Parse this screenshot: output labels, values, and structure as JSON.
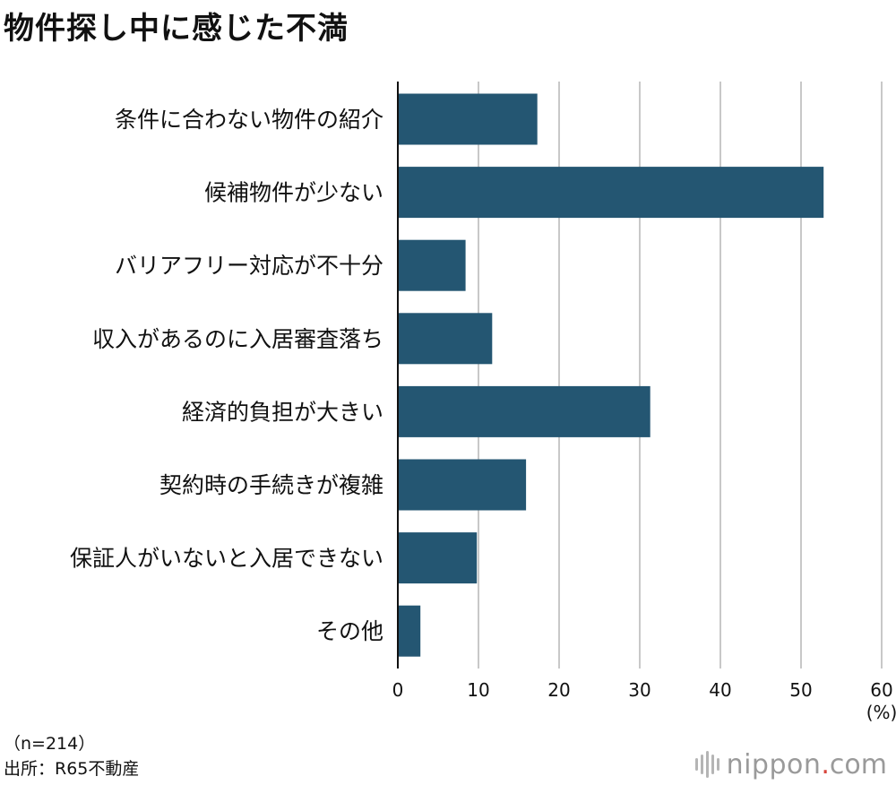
{
  "chart_data": {
    "type": "bar",
    "orientation": "horizontal",
    "title": "物件探し中に感じた不満",
    "categories": [
      "条件に合わない物件の紹介",
      "候補物件が少ない",
      "バリアフリー対応が不十分",
      "収入があるのに入居審査落ち",
      "経済的負担が大きい",
      "契約時の手続きが複雑",
      "保証人がいないと入居できない",
      "その他"
    ],
    "values": [
      17.3,
      52.8,
      8.4,
      11.7,
      31.3,
      15.9,
      9.8,
      2.8
    ],
    "xlim": [
      0,
      60
    ],
    "xticks": [
      "0",
      "10",
      "20",
      "30",
      "40",
      "50",
      "60"
    ],
    "xunit": "(%)",
    "grid": true,
    "bar_color": "#245672",
    "grid_color": "#c8c8c8"
  },
  "notes": {
    "sample": "（n=214）",
    "source": "出所：R65不動産"
  },
  "brand": {
    "name": "nippon",
    "dot": ".",
    "tld": "com",
    "dot_color": "#d8453c"
  }
}
